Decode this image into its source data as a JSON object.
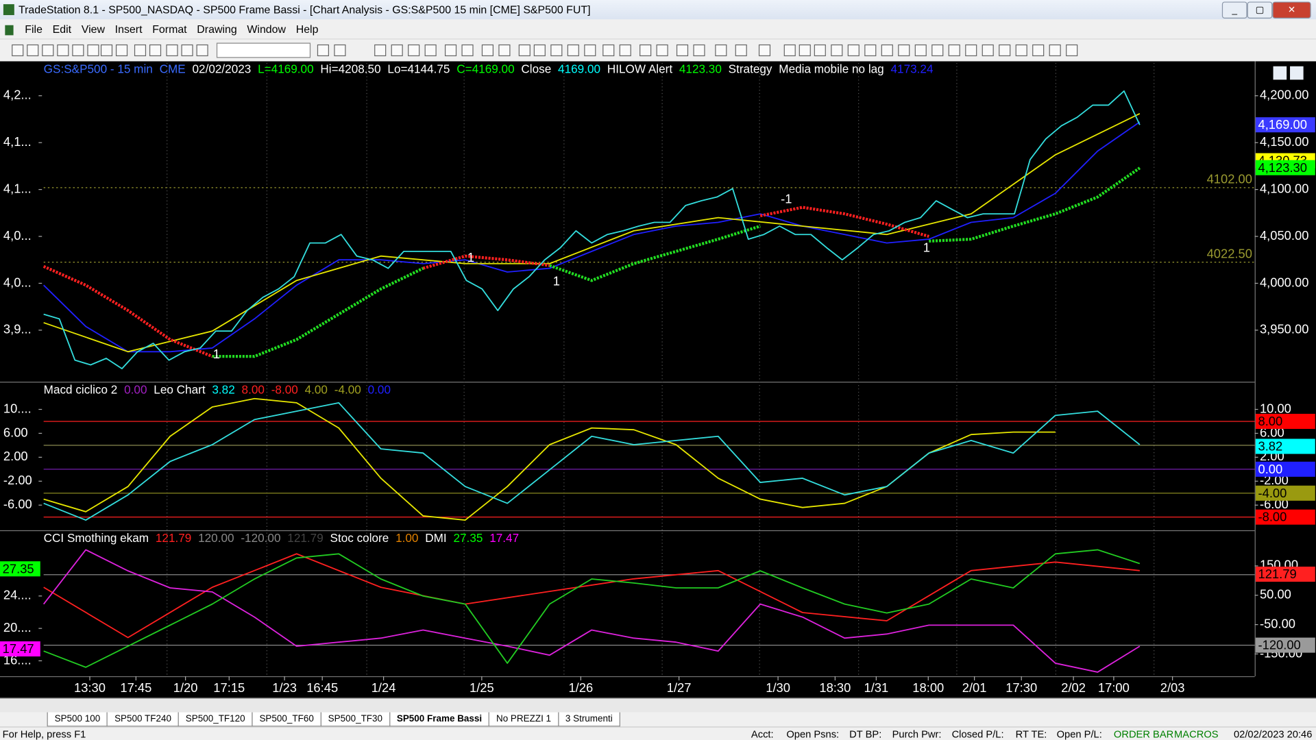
{
  "window": {
    "title": "TradeStation 8.1 - SP500_NASDAQ - SP500 Frame Bassi - [Chart Analysis - GS:S&P500  15 min  [CME] S&P500 FUT]"
  },
  "menu": [
    "File",
    "Edit",
    "View",
    "Insert",
    "Format",
    "Drawing",
    "Window",
    "Help"
  ],
  "chart_data": [
    {
      "type": "line",
      "header": [
        "GS:S&P500 - 15 min",
        "CME",
        "02/02/2023",
        "L=4169.00",
        "Hi=4208.50",
        "Lo=4144.75",
        "C=4169.00",
        "Close",
        "4169.00",
        "HILOW Alert",
        "4123.30",
        "Strategy",
        "Media mobile no lag",
        "4173.24"
      ],
      "ylim": [
        3895,
        4235
      ],
      "yticks": [
        {
          "value": 3950,
          "label": "3,950.00"
        },
        {
          "value": 4000,
          "label": "4,000.00"
        },
        {
          "value": 4050,
          "label": "4,050.00"
        },
        {
          "value": 4100,
          "label": "4,100.00"
        },
        {
          "value": 4150,
          "label": "4,150.00"
        },
        {
          "value": 4200,
          "label": "4,200.00"
        }
      ],
      "yticks_left": [
        {
          "value": 3950,
          "label": "3,9..."
        },
        {
          "value": 4000,
          "label": "4,0..."
        },
        {
          "value": 4050,
          "label": "4,0..."
        },
        {
          "value": 4100,
          "label": "4,1..."
        },
        {
          "value": 4150,
          "label": "4,1..."
        },
        {
          "value": 4200,
          "label": "4,2..."
        }
      ],
      "reference_lines": [
        {
          "value": 4102,
          "label": "4102.00",
          "color": "#9a9a30"
        },
        {
          "value": 4022.5,
          "label": "4022.50",
          "color": "#9a9a30"
        }
      ],
      "tags": [
        {
          "value": 4169,
          "label": "4,169.00",
          "color": "#3a3aff"
        },
        {
          "value": 4130.73,
          "label": "4,130.73",
          "color": "#ffff00"
        },
        {
          "value": 4123.3,
          "label": "4,123.30",
          "color": "#00ff00"
        }
      ],
      "annotations": [
        "1",
        "1",
        "1",
        "-1",
        "1"
      ],
      "series": [
        {
          "name": "Media mobile no lag",
          "color": "#2020ff",
          "values": [
            3998,
            3954,
            3927,
            3927,
            3931,
            3962,
            3998,
            4025,
            4025,
            4021,
            4025,
            4012,
            4016,
            4034,
            4052,
            4061,
            4065,
            4074,
            4061,
            4052,
            4043,
            4047,
            4065,
            4070,
            4096,
            4141,
            4172
          ]
        },
        {
          "color": "#e6e600",
          "values": [
            3958,
            3927,
            3949,
            4003,
            4029,
            4021,
            4021,
            4056,
            4070,
            4061,
            4052,
            4074,
            4137,
            4181
          ]
        },
        {
          "color": "#ff2020",
          "style": "dotted",
          "values": [
            4018,
            3998,
            3971,
            3940,
            3922,
            null,
            null,
            null,
            null,
            4016,
            4029,
            4025,
            4019,
            null,
            null,
            null,
            null,
            4072,
            4081,
            4074,
            4063,
            4050,
            null,
            null,
            null,
            null,
            null
          ]
        },
        {
          "name": "HILOW Alert",
          "color": "#22dd22",
          "style": "dotted",
          "values": [
            null,
            null,
            null,
            null,
            3922,
            3922,
            3940,
            3967,
            3994,
            4016,
            null,
            null,
            4019,
            4003,
            4021,
            4034,
            4047,
            4061,
            null,
            null,
            null,
            4045,
            4047,
            4061,
            4074,
            4092,
            4123
          ]
        },
        {
          "name": "Close",
          "color": "#33dddd",
          "values": [
            3967,
            3962,
            3918,
            3913,
            3920,
            3909,
            3927,
            3936,
            3918,
            3927,
            3931,
            3949,
            3949,
            3971,
            3985,
            3994,
            4007,
            4043,
            4043,
            4052,
            4029,
            4025,
            4016,
            4034,
            4034,
            4034,
            4034,
            4003,
            3994,
            3971,
            3994,
            4007,
            4025,
            4038,
            4056,
            4043,
            4052,
            4056,
            4061,
            4065,
            4065,
            4083,
            4088,
            4092,
            4101,
            4047,
            4052,
            4061,
            4052,
            4052,
            4038,
            4025,
            4038,
            4052,
            4056,
            4065,
            4070,
            4088,
            4079,
            4070,
            4074,
            4074,
            4074,
            4132,
            4154,
            4168,
            4177,
            4190,
            4190,
            4205,
            4169
          ]
        }
      ]
    },
    {
      "type": "line",
      "header": [
        "Macd ciclico 2",
        "0.00",
        "Leo Chart",
        "3.82",
        "8.00",
        "-8.00",
        "4.00",
        "-4.00",
        "0.00"
      ],
      "ylim": [
        -10.2,
        14.2
      ],
      "yticks": [
        {
          "value": 10,
          "label": "10.00"
        },
        {
          "value": 6,
          "label": "6.00"
        },
        {
          "value": 2,
          "label": "2.00"
        },
        {
          "value": -2,
          "label": "-2.00"
        },
        {
          "value": -6,
          "label": "-6.00"
        }
      ],
      "yticks_left": [
        {
          "value": 10,
          "label": "10...."
        },
        {
          "value": 6,
          "label": "6.00"
        },
        {
          "value": 2,
          "label": "2.00"
        },
        {
          "value": -2,
          "label": "-2.00"
        },
        {
          "value": -6,
          "label": "-6.00"
        }
      ],
      "reference_lines": [
        {
          "value": 8,
          "color": "#ff2020"
        },
        {
          "value": 4,
          "color": "#8a8a50"
        },
        {
          "value": 0,
          "color": "#8020c0"
        },
        {
          "value": -4,
          "color": "#8a8a20"
        },
        {
          "value": -8,
          "color": "#ff2020"
        }
      ],
      "tags": [
        {
          "value": 8,
          "label": "8.00",
          "color": "#ff0000"
        },
        {
          "value": 3.82,
          "label": "3.82",
          "color": "#00ffff"
        },
        {
          "value": 0,
          "label": "0.00",
          "color": "#2020ff"
        },
        {
          "value": -4,
          "label": "-4.00",
          "color": "#9a9a10"
        },
        {
          "value": -8,
          "label": "-8.00",
          "color": "#ff0000"
        }
      ],
      "series": [
        {
          "color": "#e6e600",
          "values": [
            -5,
            -7.1,
            -2.9,
            5.5,
            10.4,
            11.8,
            11.1,
            6.9,
            -1.5,
            -7.8,
            -8.5,
            -2.9,
            4.1,
            6.9,
            6.6,
            4.1,
            -1.5,
            -5,
            -6.4,
            -5.7,
            -2.9,
            2.7,
            5.8,
            6.2,
            6.2,
            null,
            null
          ]
        },
        {
          "color": "#33dddd",
          "values": [
            -5.7,
            -8.5,
            -4.3,
            1.3,
            4.1,
            8.3,
            9.7,
            11.1,
            3.4,
            2.7,
            -2.9,
            -5.7,
            -0.1,
            5.5,
            4.1,
            4.8,
            5.5,
            -2.2,
            -1.5,
            -4.3,
            -2.9,
            2.7,
            4.8,
            2.7,
            9,
            9.7,
            4.1
          ]
        }
      ]
    },
    {
      "type": "line",
      "header": [
        "CCI Smothing ekam",
        "121.79",
        "120.00",
        "-120.00",
        "121.79",
        "Stoc colore",
        "1.00",
        "DMI",
        "27.35",
        "17.47"
      ],
      "ylim": [
        -223,
        260
      ],
      "yticks": [
        {
          "value": 150,
          "label": "150.00"
        },
        {
          "value": 50,
          "label": "50.00"
        },
        {
          "value": -50,
          "label": "-50.00"
        },
        {
          "value": -150,
          "label": "-150.00"
        }
      ],
      "y2lim": [
        14.2,
        31.7
      ],
      "y2ticks": [
        {
          "value": 24,
          "label": "24...."
        },
        {
          "value": 20,
          "label": "20...."
        },
        {
          "value": 16,
          "label": "16...."
        }
      ],
      "reference_lines": [
        {
          "value": 120,
          "color": "#888888"
        },
        {
          "value": -120,
          "color": "#888888"
        }
      ],
      "tags": [
        {
          "value": 121.79,
          "label": "121.79",
          "color": "#ff2020"
        },
        {
          "value": -120,
          "label": "-120.00",
          "color": "#9a9a9a"
        }
      ],
      "tags_left": [
        {
          "value": 27.35,
          "label": "27.35",
          "color": "#00ff00"
        },
        {
          "value": 17.47,
          "label": "17.47",
          "color": "#ff00ff"
        }
      ],
      "series": [
        {
          "color": "#ff2020",
          "values": [
            77,
            -94,
            77,
            191,
            77,
            20,
            63,
            106,
            134,
            -9,
            -37,
            134,
            163,
            134
          ]
        },
        {
          "color": "#dd22dd",
          "axis": "y2",
          "values": [
            23,
            29.7,
            27.1,
            25,
            24.5,
            21.4,
            17.8,
            18.3,
            18.8,
            19.8,
            18.8,
            17.8,
            16.7,
            19.8,
            18.8,
            18.3,
            17.2,
            23,
            21.4,
            18.8,
            19.3,
            20.4,
            20.4,
            20.4,
            15.7,
            14.6,
            17.8
          ]
        },
        {
          "color": "#22cc22",
          "axis": "y2",
          "values": [
            17.2,
            15.2,
            17.8,
            20.4,
            23,
            26.1,
            28.7,
            29.2,
            26.1,
            24,
            23,
            15.7,
            23,
            26.1,
            25.6,
            25,
            25,
            27.1,
            25,
            23,
            21.9,
            23,
            26.1,
            25,
            29.2,
            29.7,
            28
          ]
        }
      ]
    }
  ],
  "time_axis": [
    "13:30",
    "17:45",
    "1/20",
    "17:15",
    "1/23",
    "16:45",
    "1/24",
    "1/25",
    "1/26",
    "1/27",
    "1/30",
    "18:30",
    "1/31",
    "18:00",
    "2/01",
    "17:30",
    "2/02",
    "17:00",
    "2/03"
  ],
  "tabs": [
    "SP500 100",
    "SP500 TF240",
    "SP500_TF120",
    "SP500_TF60",
    "SP500_TF30",
    "SP500 Frame Bassi",
    "No PREZZI 1",
    "3 Strumenti"
  ],
  "status_bar": {
    "help": "For Help, press F1",
    "fields": [
      "Acct:",
      "Open Psns:",
      "DT BP:",
      "Purch Pwr:",
      "Closed P/L:",
      "RT TE:",
      "Open P/L:"
    ],
    "order_bar": "ORDER BAR",
    "macros": "MACROS",
    "datetime": "02/02/2023 20:46"
  }
}
